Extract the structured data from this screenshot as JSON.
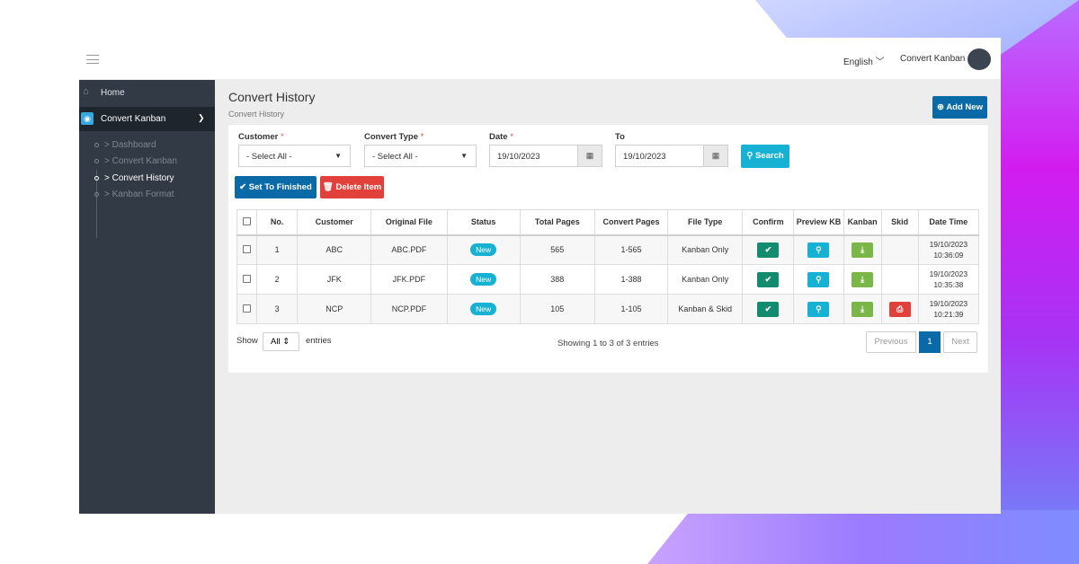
{
  "topbar": {
    "language": "English",
    "user": "Convert Kanban"
  },
  "sidebar": {
    "home": "Home",
    "section": "Convert Kanban",
    "items": [
      {
        "label": "> Dashboard"
      },
      {
        "label": "> Convert Kanban"
      },
      {
        "label": "> Convert History"
      },
      {
        "label": "> Kanban Format"
      }
    ]
  },
  "page": {
    "title": "Convert History",
    "breadcrumb": "Convert History",
    "add_new": "Add New"
  },
  "filters": {
    "customer_label": "Customer",
    "customer_value": "- Select All -",
    "type_label": "Convert Type",
    "type_value": "- Select All -",
    "date_label": "Date",
    "date_value": "19/10/2023",
    "to_label": "To",
    "to_value": "19/10/2023",
    "search": "Search",
    "required_mark": "*"
  },
  "actions": {
    "set_finished": "Set To Finished",
    "delete_item": "Delete Item"
  },
  "table": {
    "headers": [
      "No.",
      "Customer",
      "Original File",
      "Status",
      "Total Pages",
      "Convert Pages",
      "File Type",
      "Confirm",
      "Preview KB",
      "Kanban",
      "Skid",
      "Date Time"
    ],
    "rows": [
      {
        "no": "1",
        "customer": "ABC",
        "file": "ABC.PDF",
        "status": "New",
        "total": "565",
        "convert": "1-565",
        "type": "Kanban Only",
        "date": "19/10/2023",
        "time": "10:36:09"
      },
      {
        "no": "2",
        "customer": "JFK",
        "file": "JFK.PDF",
        "status": "New",
        "total": "388",
        "convert": "1-388",
        "type": "Kanban Only",
        "date": "19/10/2023",
        "time": "10:35:38"
      },
      {
        "no": "3",
        "customer": "NCP",
        "file": "NCP.PDF",
        "status": "New",
        "total": "105",
        "convert": "1-105",
        "type": "Kanban & Skid",
        "date": "19/10/2023",
        "time": "10:21:39"
      }
    ]
  },
  "footer": {
    "show": "Show",
    "length": "All",
    "entries": "entries",
    "info": "Showing 1 to 3 of 3 entries",
    "previous": "Previous",
    "page": "1",
    "next": "Next"
  },
  "icons": {
    "search": "search-icon",
    "check": "check-icon",
    "trash": "trash-icon",
    "plus": "plus-circle-icon",
    "download": "download-icon",
    "pdf": "pdf-icon",
    "calendar": "calendar-icon"
  }
}
